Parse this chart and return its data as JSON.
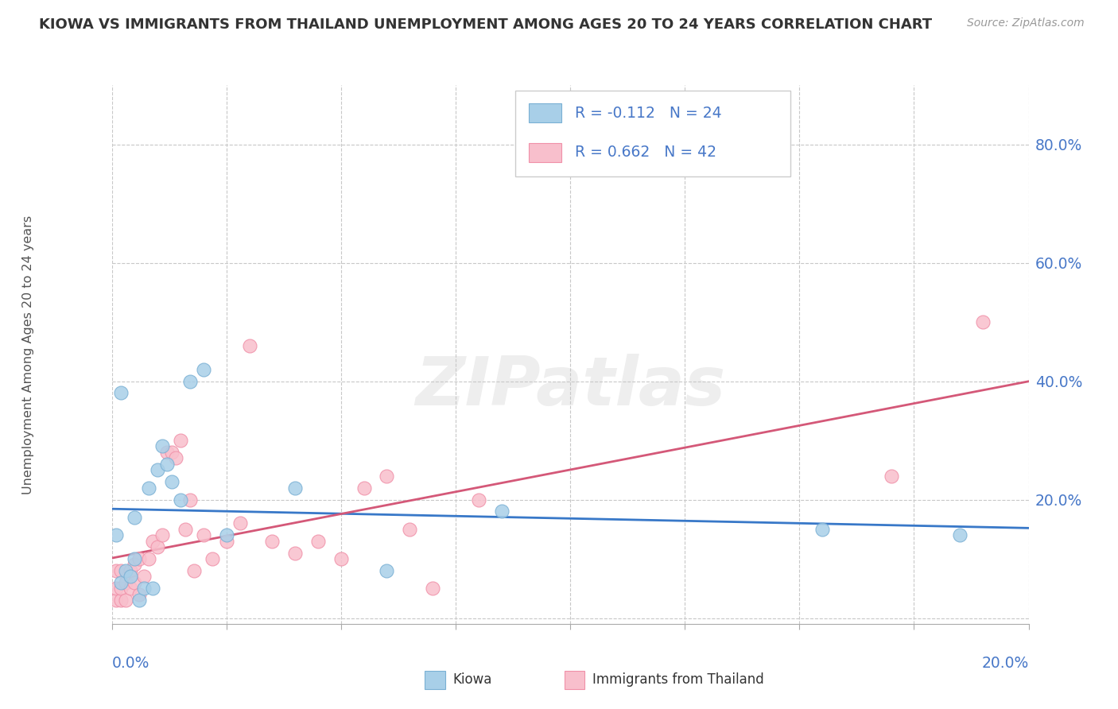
{
  "title": "KIOWA VS IMMIGRANTS FROM THAILAND UNEMPLOYMENT AMONG AGES 20 TO 24 YEARS CORRELATION CHART",
  "source": "Source: ZipAtlas.com",
  "ylabel": "Unemployment Among Ages 20 to 24 years",
  "xlim": [
    0.0,
    0.2
  ],
  "ylim": [
    -0.01,
    0.9
  ],
  "yticks": [
    0.0,
    0.2,
    0.4,
    0.6,
    0.8
  ],
  "ytick_labels": [
    "",
    "20.0%",
    "40.0%",
    "60.0%",
    "80.0%"
  ],
  "xtick_positions": [
    0.0,
    0.025,
    0.05,
    0.075,
    0.1,
    0.125,
    0.15,
    0.175,
    0.2
  ],
  "kiowa_R": -0.112,
  "kiowa_N": 24,
  "thailand_R": 0.662,
  "thailand_N": 42,
  "kiowa_color": "#a8cfe8",
  "kiowa_edge_color": "#7ab0d4",
  "thailand_color": "#f8bfcc",
  "thailand_edge_color": "#f090a8",
  "kiowa_line_color": "#3878c8",
  "thailand_line_color": "#d45878",
  "legend_text_color": "#4878c8",
  "ytick_color": "#4878c8",
  "xlabel_color": "#4878c8",
  "legend_label_kiowa": "Kiowa",
  "legend_label_thailand": "Immigrants from Thailand",
  "background_color": "#ffffff",
  "watermark_color": "#e0e0e0",
  "grid_color": "#c8c8c8",
  "kiowa_x": [
    0.001,
    0.002,
    0.002,
    0.003,
    0.004,
    0.005,
    0.005,
    0.006,
    0.007,
    0.008,
    0.009,
    0.01,
    0.011,
    0.012,
    0.013,
    0.015,
    0.017,
    0.02,
    0.025,
    0.04,
    0.06,
    0.085,
    0.155,
    0.185
  ],
  "kiowa_y": [
    0.14,
    0.06,
    0.38,
    0.08,
    0.07,
    0.17,
    0.1,
    0.03,
    0.05,
    0.22,
    0.05,
    0.25,
    0.29,
    0.26,
    0.23,
    0.2,
    0.4,
    0.42,
    0.14,
    0.22,
    0.08,
    0.18,
    0.15,
    0.14
  ],
  "thailand_x": [
    0.001,
    0.001,
    0.001,
    0.002,
    0.002,
    0.002,
    0.003,
    0.003,
    0.004,
    0.004,
    0.005,
    0.005,
    0.006,
    0.006,
    0.007,
    0.008,
    0.009,
    0.01,
    0.011,
    0.012,
    0.013,
    0.014,
    0.015,
    0.016,
    0.017,
    0.018,
    0.02,
    0.022,
    0.025,
    0.028,
    0.03,
    0.035,
    0.04,
    0.045,
    0.05,
    0.055,
    0.06,
    0.065,
    0.07,
    0.08,
    0.17,
    0.19
  ],
  "thailand_y": [
    0.03,
    0.05,
    0.08,
    0.03,
    0.05,
    0.08,
    0.03,
    0.06,
    0.05,
    0.08,
    0.06,
    0.09,
    0.04,
    0.1,
    0.07,
    0.1,
    0.13,
    0.12,
    0.14,
    0.28,
    0.28,
    0.27,
    0.3,
    0.15,
    0.2,
    0.08,
    0.14,
    0.1,
    0.13,
    0.16,
    0.46,
    0.13,
    0.11,
    0.13,
    0.1,
    0.22,
    0.24,
    0.15,
    0.05,
    0.2,
    0.24,
    0.5
  ]
}
